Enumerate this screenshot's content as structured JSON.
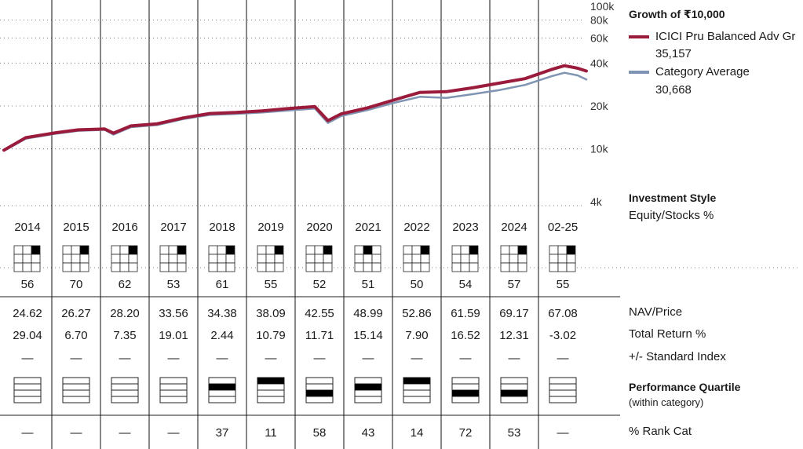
{
  "growth": {
    "title": "Growth of ₹10,000"
  },
  "legend": {
    "fund": {
      "name": "ICICI Pru Balanced Adv Gr",
      "value": "35,157",
      "color": "#9b1b3c"
    },
    "category": {
      "name": "Category Average",
      "value": "30,668",
      "color": "#7f94b2"
    }
  },
  "chart_data": {
    "type": "line",
    "title": "Growth of ₹10,000",
    "y_scale": "log",
    "ylim": [
      4000,
      100000
    ],
    "y_ticks": [
      {
        "value": 100000,
        "label": "100k"
      },
      {
        "value": 80000,
        "label": "80k"
      },
      {
        "value": 60000,
        "label": "60k"
      },
      {
        "value": 40000,
        "label": "40k"
      },
      {
        "value": 20000,
        "label": "20k"
      },
      {
        "value": 10000,
        "label": "10k"
      },
      {
        "value": 4000,
        "label": "4k"
      }
    ],
    "grid": true,
    "legend_position": "top-right",
    "x_start": "2014-01",
    "x_end": "2025-02",
    "x": [
      "2014-01",
      "2014-06",
      "2015-01",
      "2015-06",
      "2015-12",
      "2016-02",
      "2016-06",
      "2016-12",
      "2017-06",
      "2017-12",
      "2018-06",
      "2018-12",
      "2019-06",
      "2019-12",
      "2020-03",
      "2020-06",
      "2020-12",
      "2021-06",
      "2021-12",
      "2022-06",
      "2022-12",
      "2023-06",
      "2023-12",
      "2024-06",
      "2024-09",
      "2024-12",
      "2025-02"
    ],
    "series": [
      {
        "name": "ICICI Pru Balanced Adv Gr",
        "color": "#9b1b3c",
        "values": [
          9800,
          12000,
          13000,
          13600,
          13800,
          12900,
          14500,
          15000,
          16500,
          17700,
          18000,
          18500,
          19200,
          19800,
          15800,
          17600,
          19400,
          22000,
          24900,
          25200,
          26800,
          28900,
          31100,
          36000,
          38300,
          36800,
          35157
        ]
      },
      {
        "name": "Category Average",
        "color": "#7f94b2",
        "values": [
          9700,
          11800,
          12800,
          13400,
          13600,
          12600,
          14200,
          14700,
          16200,
          17300,
          17600,
          18000,
          18600,
          19200,
          15200,
          17000,
          18700,
          21000,
          23200,
          22800,
          24200,
          25800,
          28100,
          32300,
          34200,
          32800,
          30668
        ]
      }
    ]
  },
  "style": {
    "title": "Investment Style",
    "subtitle": "Equity/Stocks %"
  },
  "years": [
    "2014",
    "2015",
    "2016",
    "2017",
    "2018",
    "2019",
    "2020",
    "2021",
    "2022",
    "2023",
    "2024",
    "02-25"
  ],
  "equity": [
    "56",
    "70",
    "62",
    "53",
    "61",
    "55",
    "52",
    "51",
    "50",
    "54",
    "57",
    "55"
  ],
  "stylebox_cell": [
    2,
    2,
    2,
    2,
    2,
    2,
    2,
    1,
    2,
    2,
    2,
    2
  ],
  "nav": {
    "label": "NAV/Price",
    "values": [
      "24.62",
      "26.27",
      "28.20",
      "33.56",
      "34.38",
      "38.09",
      "42.55",
      "48.99",
      "52.86",
      "61.59",
      "69.17",
      "67.08"
    ]
  },
  "total_return": {
    "label": "Total Return %",
    "values": [
      "29.04",
      "6.70",
      "7.35",
      "19.01",
      "2.44",
      "10.79",
      "11.71",
      "15.14",
      "7.90",
      "16.52",
      "12.31",
      "-3.02"
    ]
  },
  "vs_index": {
    "label": "+/- Standard Index",
    "values": [
      "—",
      "—",
      "—",
      "—",
      "—",
      "—",
      "—",
      "—",
      "—",
      "—",
      "—",
      "—"
    ]
  },
  "quartile": {
    "title": "Performance Quartile",
    "subtitle": "(within category)",
    "values": [
      0,
      0,
      0,
      0,
      2,
      1,
      3,
      2,
      1,
      3,
      3,
      0
    ]
  },
  "rank": {
    "label": "% Rank Cat",
    "values": [
      "—",
      "—",
      "—",
      "—",
      "37",
      "11",
      "58",
      "43",
      "14",
      "72",
      "53",
      "—"
    ]
  }
}
